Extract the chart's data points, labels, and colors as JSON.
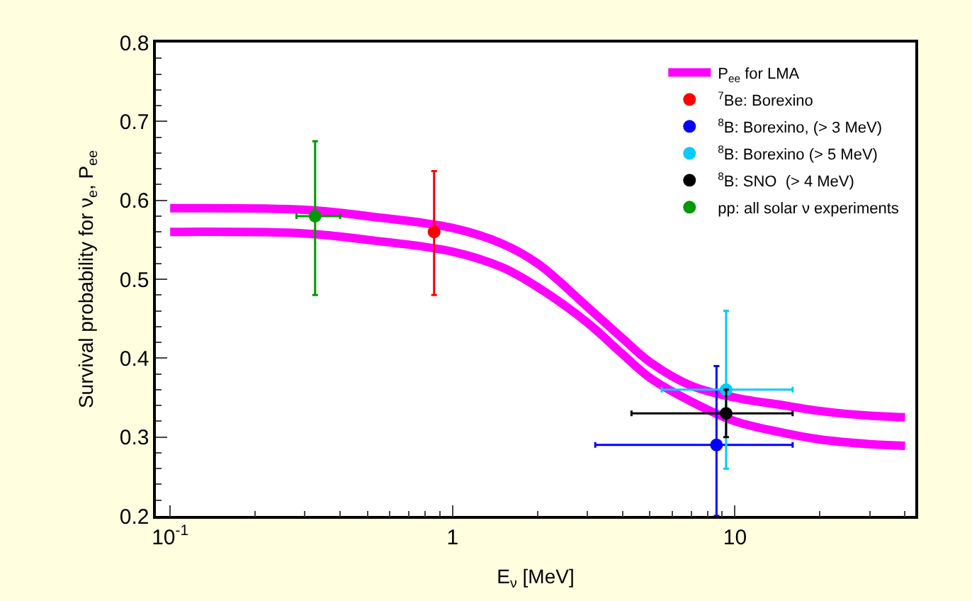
{
  "chart_data": {
    "type": "scatter",
    "xlabel": "E$_{ν}$ [MeV]",
    "ylabel": "Survival probability for ν$_{e}$, P$_{ee}$",
    "log": "x",
    "xlim": [
      0.089,
      43.5
    ],
    "ylim": [
      0.2,
      0.8
    ],
    "xticks": [
      {
        "value": 0.1,
        "label": "10$^{-1}$"
      },
      1,
      10
    ],
    "yticks": [
      0.2,
      0.3,
      0.4,
      0.5,
      0.6,
      0.7,
      0.8
    ],
    "grid": false,
    "legend": "top right",
    "marker": "circle",
    "series": [
      {
        "type": "line",
        "marker": "none",
        "name": "P$_{ee}$ for LMA",
        "color": "#ff00ff",
        "x": [
          0.1,
          0.3,
          0.5,
          1,
          1.5,
          2,
          3,
          4,
          5,
          7,
          10,
          15,
          20,
          30,
          40
        ],
        "values": [
          0.59,
          0.588,
          0.58,
          0.565,
          0.545,
          0.52,
          0.465,
          0.425,
          0.395,
          0.365,
          0.35,
          0.34,
          0.333,
          0.327,
          0.325
        ]
      },
      {
        "type": "line",
        "marker": "none",
        "color": "#ff00ff",
        "x": [
          0.1,
          0.3,
          0.5,
          1,
          1.5,
          2,
          3,
          4,
          5,
          7,
          10,
          15,
          20,
          30,
          40
        ],
        "values": [
          0.56,
          0.558,
          0.55,
          0.535,
          0.515,
          0.49,
          0.445,
          0.405,
          0.375,
          0.345,
          0.32,
          0.305,
          0.297,
          0.291,
          0.289
        ]
      },
      {
        "name": "$^{7}$Be: Borexino",
        "color": "#ff0000",
        "x": [
          0.86
        ],
        "values": [
          0.56
        ],
        "errors": [
          [
            0.48,
            0.637
          ]
        ]
      },
      {
        "name": "$^{8}$B: Borexino, (> 3 MeV)",
        "color": "#0000ff",
        "x": [
          8.6
        ],
        "values": [
          0.29
        ],
        "errors": [
          [
            0.2,
            0.39
          ]
        ],
        "xerrors": [
          [
            3.2,
            16
          ]
        ]
      },
      {
        "name": "$^{8}$B: Borexino (> 5 MeV)",
        "color": "#00ccff",
        "x": [
          9.3
        ],
        "values": [
          0.36
        ],
        "errors": [
          [
            0.26,
            0.46
          ]
        ],
        "xerrors": [
          [
            5.5,
            16
          ]
        ]
      },
      {
        "name": "$^{8}$B: SNO  (> 4 MeV)",
        "color": "#000000",
        "x": [
          9.3
        ],
        "values": [
          0.33
        ],
        "errors": [
          [
            0.3,
            0.36
          ]
        ],
        "xerrors": [
          [
            4.3,
            16
          ]
        ]
      },
      {
        "name": "pp: all solar ν experiments",
        "color": "#009900",
        "x": [
          0.326
        ],
        "values": [
          0.58
        ],
        "errors": [
          [
            0.48,
            0.675
          ]
        ],
        "xerrors": [
          [
            0.28,
            0.4
          ]
        ]
      }
    ]
  }
}
